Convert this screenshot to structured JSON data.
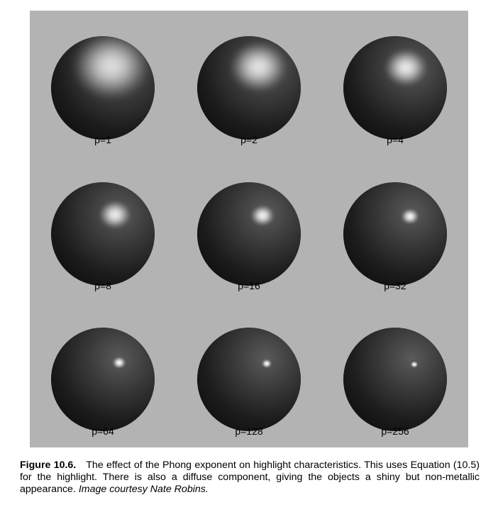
{
  "figure": {
    "spheres": [
      {
        "label": "p=1",
        "exponent": 1
      },
      {
        "label": "p=2",
        "exponent": 2
      },
      {
        "label": "p=4",
        "exponent": 4
      },
      {
        "label": "p=8",
        "exponent": 8
      },
      {
        "label": "p=16",
        "exponent": 16
      },
      {
        "label": "p=32",
        "exponent": 32
      },
      {
        "label": "p=64",
        "exponent": 64
      },
      {
        "label": "p=128",
        "exponent": 128
      },
      {
        "label": "p=256",
        "exponent": 256
      }
    ],
    "colors": {
      "background": "#b3b3b3",
      "sphere_dark": "#0d0d0d",
      "highlight": "#ffffff"
    }
  },
  "caption": {
    "figure_number": "Figure 10.6.",
    "text": "The effect of the Phong exponent on highlight characteristics. This uses Equation (10.5) for the highlight. There is also a diffuse component, giving the objects a shiny but non-metallic appearance.",
    "credit": "Image courtesy Nate Robins."
  }
}
